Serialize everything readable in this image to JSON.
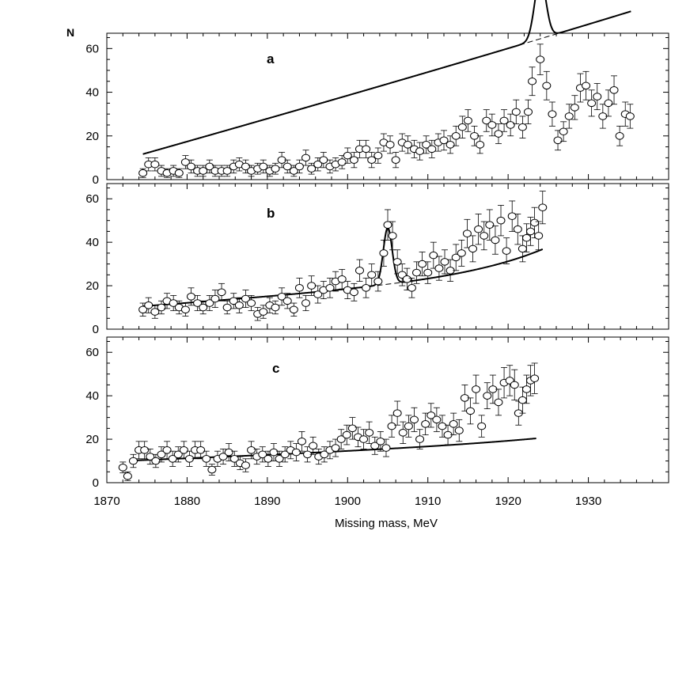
{
  "chart_data": [
    {
      "type": "scatter",
      "panel": "a",
      "ylabel": "N",
      "xlabel": "",
      "xlim": [
        1870,
        1940
      ],
      "ylim": [
        0,
        67
      ],
      "yticks": [
        0,
        20,
        40,
        60
      ],
      "points": [
        [
          1874.5,
          3,
          2
        ],
        [
          1875.2,
          7,
          3
        ],
        [
          1876.0,
          7,
          3
        ],
        [
          1876.8,
          4,
          2.5
        ],
        [
          1877.5,
          3,
          2
        ],
        [
          1878.3,
          4,
          2.5
        ],
        [
          1879.0,
          3,
          2
        ],
        [
          1879.8,
          8,
          3
        ],
        [
          1880.5,
          6,
          3
        ],
        [
          1881.3,
          4,
          2.5
        ],
        [
          1882.0,
          4,
          2.5
        ],
        [
          1882.8,
          6,
          3
        ],
        [
          1883.5,
          4,
          2.5
        ],
        [
          1884.3,
          4,
          2.5
        ],
        [
          1885.0,
          4,
          2.5
        ],
        [
          1885.8,
          6,
          3
        ],
        [
          1886.5,
          7,
          3
        ],
        [
          1887.3,
          6,
          3
        ],
        [
          1888.0,
          4,
          2.5
        ],
        [
          1888.8,
          5,
          2.5
        ],
        [
          1889.5,
          6,
          3
        ],
        [
          1890.3,
          4,
          2.5
        ],
        [
          1891.0,
          5,
          2.5
        ],
        [
          1891.8,
          9,
          3.5
        ],
        [
          1892.5,
          6,
          3
        ],
        [
          1893.3,
          4,
          2.5
        ],
        [
          1894.0,
          6,
          3
        ],
        [
          1894.8,
          10,
          3.5
        ],
        [
          1895.5,
          5,
          2.5
        ],
        [
          1896.3,
          7,
          3
        ],
        [
          1897.0,
          9,
          3.5
        ],
        [
          1897.8,
          6,
          3
        ],
        [
          1898.5,
          7,
          3
        ],
        [
          1899.3,
          8,
          3
        ],
        [
          1900.0,
          11,
          3.5
        ],
        [
          1900.8,
          9,
          3.5
        ],
        [
          1901.5,
          14,
          4
        ],
        [
          1902.3,
          14,
          4
        ],
        [
          1903.0,
          9,
          3.5
        ],
        [
          1903.8,
          11,
          3.5
        ],
        [
          1904.5,
          17,
          4
        ],
        [
          1905.3,
          16,
          4
        ],
        [
          1906.0,
          9,
          3.5
        ],
        [
          1906.8,
          17,
          4
        ],
        [
          1907.5,
          16,
          4
        ],
        [
          1908.3,
          14,
          4
        ],
        [
          1909.0,
          13,
          4
        ],
        [
          1909.8,
          16,
          4
        ],
        [
          1910.5,
          14,
          4
        ],
        [
          1911.3,
          17,
          4
        ],
        [
          1912.0,
          18,
          4.5
        ],
        [
          1912.8,
          16,
          4
        ],
        [
          1913.5,
          20,
          4.5
        ],
        [
          1914.3,
          24,
          5
        ],
        [
          1915.0,
          27,
          5
        ],
        [
          1915.8,
          20,
          4.5
        ],
        [
          1916.5,
          16,
          4
        ],
        [
          1917.3,
          27,
          5
        ],
        [
          1918.0,
          25,
          5
        ],
        [
          1918.8,
          21,
          4.5
        ],
        [
          1919.5,
          27,
          5
        ],
        [
          1920.3,
          25,
          5
        ],
        [
          1921.0,
          31,
          5.5
        ],
        [
          1921.8,
          24,
          5
        ],
        [
          1922.5,
          31,
          5.5
        ],
        [
          1923.0,
          45,
          6.5
        ],
        [
          1924.0,
          55,
          7
        ],
        [
          1924.8,
          43,
          6.5
        ],
        [
          1925.5,
          30,
          5.5
        ],
        [
          1926.2,
          18,
          4.5
        ],
        [
          1926.9,
          22,
          4.5
        ],
        [
          1927.6,
          29,
          5.5
        ],
        [
          1928.3,
          33,
          5.5
        ],
        [
          1929.0,
          42,
          6.5
        ],
        [
          1929.7,
          43,
          6.5
        ],
        [
          1930.4,
          35,
          6
        ],
        [
          1931.1,
          38,
          6
        ],
        [
          1931.8,
          29,
          5.5
        ],
        [
          1932.5,
          35,
          6
        ],
        [
          1933.2,
          41,
          6.5
        ],
        [
          1933.9,
          20,
          4.5
        ],
        [
          1934.6,
          30,
          5.5
        ],
        [
          1935.2,
          29,
          5.5
        ]
      ],
      "fit": {
        "background": [
          5,
          1,
          3.5,
          0.0185,
          1,
          0
        ],
        "peaks": [
          {
            "center": 1924.0,
            "amplitude": 28,
            "sigma": 0.7
          }
        ],
        "xmin": 1874.5,
        "xmax": 1935.3
      }
    },
    {
      "type": "scatter",
      "panel": "b",
      "ylabel": "",
      "xlabel": "",
      "xlim": [
        1870,
        1940
      ],
      "ylim": [
        0,
        67
      ],
      "yticks": [
        0,
        20,
        40,
        60
      ],
      "points": [
        [
          1874.5,
          9,
          3
        ],
        [
          1875.2,
          11,
          3.5
        ],
        [
          1876.0,
          8,
          3
        ],
        [
          1876.8,
          10,
          3
        ],
        [
          1877.5,
          13,
          3.5
        ],
        [
          1878.3,
          12,
          3.5
        ],
        [
          1879.0,
          10,
          3
        ],
        [
          1879.8,
          9,
          3
        ],
        [
          1880.5,
          15,
          4
        ],
        [
          1881.3,
          12,
          3.5
        ],
        [
          1882.0,
          10,
          3
        ],
        [
          1882.8,
          12,
          3.5
        ],
        [
          1883.5,
          14,
          4
        ],
        [
          1884.3,
          17,
          4
        ],
        [
          1885.0,
          10,
          3
        ],
        [
          1885.8,
          13,
          3.5
        ],
        [
          1886.5,
          11,
          3.5
        ],
        [
          1887.3,
          14,
          4
        ],
        [
          1888.0,
          12,
          3.5
        ],
        [
          1888.8,
          7,
          3
        ],
        [
          1889.5,
          8,
          3
        ],
        [
          1890.3,
          11,
          3.5
        ],
        [
          1891.0,
          10,
          3
        ],
        [
          1891.8,
          15,
          4
        ],
        [
          1892.5,
          13,
          3.5
        ],
        [
          1893.3,
          9,
          3
        ],
        [
          1894.0,
          19,
          4.5
        ],
        [
          1894.8,
          12,
          3.5
        ],
        [
          1895.5,
          20,
          4.5
        ],
        [
          1896.3,
          16,
          4
        ],
        [
          1897.0,
          18,
          4
        ],
        [
          1897.8,
          19,
          4.5
        ],
        [
          1898.5,
          22,
          4.5
        ],
        [
          1899.3,
          23,
          4.5
        ],
        [
          1900.0,
          18,
          4
        ],
        [
          1900.8,
          17,
          4
        ],
        [
          1901.5,
          27,
          5
        ],
        [
          1902.3,
          19,
          4.5
        ],
        [
          1903.0,
          25,
          5
        ],
        [
          1903.8,
          22,
          4.5
        ],
        [
          1904.5,
          35,
          6
        ],
        [
          1905.0,
          48,
          7
        ],
        [
          1905.6,
          43,
          6.5
        ],
        [
          1906.2,
          31,
          5.5
        ],
        [
          1906.8,
          25,
          5
        ],
        [
          1907.4,
          23,
          5
        ],
        [
          1908.0,
          19,
          4.5
        ],
        [
          1908.6,
          26,
          5
        ],
        [
          1909.3,
          30,
          5.5
        ],
        [
          1910.0,
          26,
          5
        ],
        [
          1910.7,
          34,
          6
        ],
        [
          1911.4,
          28,
          5.5
        ],
        [
          1912.1,
          31,
          5.5
        ],
        [
          1912.8,
          27,
          5
        ],
        [
          1913.5,
          33,
          6
        ],
        [
          1914.2,
          35,
          6
        ],
        [
          1914.9,
          44,
          6.5
        ],
        [
          1915.6,
          37,
          6
        ],
        [
          1916.3,
          46,
          7
        ],
        [
          1917.0,
          43,
          6.5
        ],
        [
          1917.7,
          48,
          7
        ],
        [
          1918.4,
          41,
          6.5
        ],
        [
          1919.1,
          50,
          7
        ],
        [
          1919.8,
          36,
          6
        ],
        [
          1920.5,
          52,
          7
        ],
        [
          1921.2,
          46,
          7
        ],
        [
          1921.8,
          37,
          6
        ],
        [
          1922.3,
          42,
          6.5
        ],
        [
          1922.8,
          45,
          6.5
        ],
        [
          1923.3,
          49,
          7
        ],
        [
          1923.8,
          43,
          6.5
        ],
        [
          1924.3,
          56,
          7.5
        ]
      ],
      "fit": {
        "background": [
          10,
          0.25,
          1.08,
          0.1,
          1.8,
          0.0175
        ],
        "peaks": [
          {
            "center": 1905.0,
            "amplitude": 26,
            "sigma": 0.55
          }
        ],
        "xmin": 1874.5,
        "xmax": 1924.3
      }
    },
    {
      "type": "scatter",
      "panel": "c",
      "ylabel": "",
      "xlabel": "Missing mass, MeV",
      "xlim": [
        1870,
        1940
      ],
      "ylim": [
        0,
        67
      ],
      "yticks": [
        0,
        20,
        40,
        60
      ],
      "xticks": [
        1870,
        1880,
        1890,
        1900,
        1910,
        1920,
        1930
      ],
      "points": [
        [
          1872.0,
          7,
          2.5
        ],
        [
          1872.6,
          3,
          2
        ],
        [
          1873.3,
          10,
          3
        ],
        [
          1874.0,
          15,
          4
        ],
        [
          1874.7,
          15,
          4
        ],
        [
          1875.4,
          12,
          3.5
        ],
        [
          1876.1,
          10,
          3
        ],
        [
          1876.8,
          13,
          3.5
        ],
        [
          1877.5,
          15,
          4
        ],
        [
          1878.2,
          11,
          3.5
        ],
        [
          1878.9,
          13,
          3.5
        ],
        [
          1879.6,
          15,
          4
        ],
        [
          1880.3,
          11,
          3.5
        ],
        [
          1881.0,
          15,
          4
        ],
        [
          1881.7,
          15,
          4
        ],
        [
          1882.4,
          11,
          3.5
        ],
        [
          1883.1,
          6,
          2.5
        ],
        [
          1883.8,
          11,
          3.5
        ],
        [
          1884.5,
          12,
          3.5
        ],
        [
          1885.2,
          14,
          4
        ],
        [
          1885.9,
          11,
          3.5
        ],
        [
          1886.6,
          9,
          3
        ],
        [
          1887.3,
          8,
          3
        ],
        [
          1888.0,
          15,
          4
        ],
        [
          1888.7,
          12,
          3.5
        ],
        [
          1889.4,
          13,
          3.5
        ],
        [
          1890.1,
          11,
          3.5
        ],
        [
          1890.8,
          14,
          4
        ],
        [
          1891.5,
          11,
          3.5
        ],
        [
          1892.2,
          13,
          3.5
        ],
        [
          1892.9,
          15,
          4
        ],
        [
          1893.6,
          14,
          4
        ],
        [
          1894.3,
          19,
          4.5
        ],
        [
          1895.0,
          13,
          3.5
        ],
        [
          1895.7,
          17,
          4
        ],
        [
          1896.4,
          12,
          3.5
        ],
        [
          1897.1,
          13,
          3.5
        ],
        [
          1897.8,
          15,
          4
        ],
        [
          1898.5,
          16,
          4
        ],
        [
          1899.2,
          20,
          4.5
        ],
        [
          1899.9,
          22,
          4.5
        ],
        [
          1900.6,
          25,
          5
        ],
        [
          1901.3,
          21,
          4.5
        ],
        [
          1902.0,
          20,
          4.5
        ],
        [
          1902.7,
          23,
          5
        ],
        [
          1903.4,
          17,
          4
        ],
        [
          1904.1,
          19,
          4.5
        ],
        [
          1904.8,
          16,
          4
        ],
        [
          1905.5,
          26,
          5
        ],
        [
          1906.2,
          32,
          5.5
        ],
        [
          1906.9,
          23,
          5
        ],
        [
          1907.6,
          26,
          5
        ],
        [
          1908.3,
          29,
          5.5
        ],
        [
          1909.0,
          20,
          4.5
        ],
        [
          1909.7,
          27,
          5
        ],
        [
          1910.4,
          31,
          5.5
        ],
        [
          1911.1,
          29,
          5.5
        ],
        [
          1911.8,
          26,
          5
        ],
        [
          1912.5,
          22,
          4.5
        ],
        [
          1913.2,
          27,
          5
        ],
        [
          1913.9,
          24,
          5
        ],
        [
          1914.6,
          39,
          6
        ],
        [
          1915.3,
          33,
          6
        ],
        [
          1916.0,
          43,
          6.5
        ],
        [
          1916.7,
          26,
          5
        ],
        [
          1917.4,
          40,
          6
        ],
        [
          1918.1,
          43,
          6.5
        ],
        [
          1918.8,
          37,
          6
        ],
        [
          1919.5,
          46,
          7
        ],
        [
          1920.2,
          47,
          7
        ],
        [
          1920.8,
          45,
          7
        ],
        [
          1921.3,
          32,
          5.5
        ],
        [
          1921.8,
          38,
          6
        ],
        [
          1922.3,
          43,
          6.5
        ],
        [
          1922.8,
          47,
          7
        ],
        [
          1923.3,
          48,
          7
        ]
      ],
      "fit": {
        "background": [
          10,
          0.13,
          0.72,
          0.06,
          1.2,
          0.0142
        ],
        "peaks": [],
        "xmin": 1873.0,
        "xmax": 1923.5
      }
    }
  ]
}
